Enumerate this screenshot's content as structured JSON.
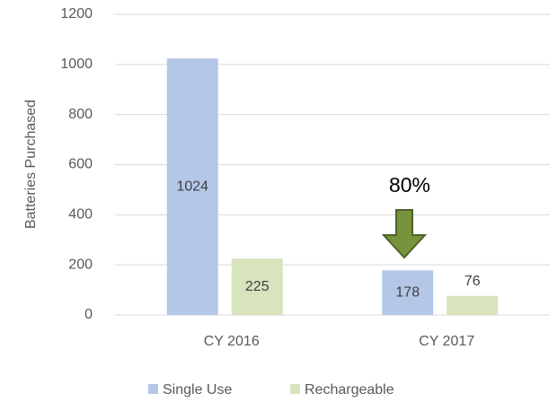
{
  "chart_data": {
    "type": "bar",
    "y_label": "Batteries Purchased",
    "categories": [
      "CY 2016",
      "CY 2017"
    ],
    "series": [
      {
        "name": "Single Use",
        "color": "#b4c7e7",
        "values": [
          1024,
          178
        ]
      },
      {
        "name": "Rechargeable",
        "color": "#d8e4bc",
        "values": [
          225,
          76
        ]
      }
    ],
    "ylim": [
      0,
      1200
    ],
    "yticks": [
      0,
      200,
      400,
      600,
      800,
      1000,
      1200
    ],
    "grid": true,
    "annotation": "80%",
    "legend": "bottom"
  }
}
